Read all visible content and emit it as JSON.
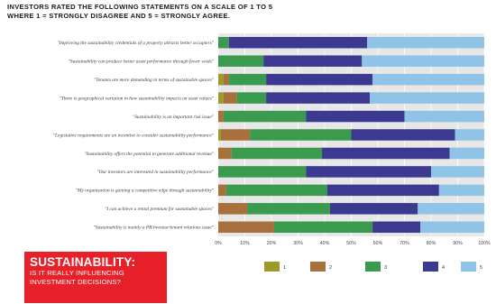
{
  "title": {
    "line1": "INVESTORS RATED THE FOLLOWING STATEMENTS ON A SCALE OF 1 TO 5",
    "line2": "WHERE 1 = STRONGLY DISAGREE AND 5 = STRONGLY AGREE."
  },
  "banner": {
    "heading": "SUSTAINABILITY:",
    "sub_line1": "IS IT REALLY INFLUENCING",
    "sub_line2": "INVESTMENT DECISIONS?"
  },
  "colors": {
    "s1": "#9c9b2a",
    "s2": "#a8703c",
    "s3": "#3a9a4e",
    "s4": "#3c3a90",
    "s5": "#8fc4e6",
    "plot_bg": "#e7e7e7",
    "grid": "#ffffff"
  },
  "chart_data": {
    "type": "bar",
    "orientation": "horizontal",
    "stacked": true,
    "categories": [
      "\"Improving the sustainability credentials of a property attracts better occupiers\"",
      "\"Sustainability can produce better asset performance through fewer voids\"",
      "\"Tenants are more demanding in terms of sustainable spaces\"",
      "\"There is geographical variation in how sustainability impacts on asset values\"",
      "\"Sustainability is an important risk issue\"",
      "\"Legislative requirements are an incentive to consider sustainability performance\"",
      "\"Sustainability offers the potential to generate additional revenue\"",
      "\"Our investors are interested in sustainability performance\"",
      "\"My organisation is gaining a competitive edge through sustainability\"",
      "\"I can achieve a rental premium for sustainable spaces\"",
      "\"Sustainability is mainly a PR/investor/tenant relations issue\""
    ],
    "series": [
      {
        "name": "1",
        "values": [
          0,
          0,
          2,
          2,
          0,
          1,
          0,
          0,
          0,
          0,
          0
        ]
      },
      {
        "name": "2",
        "values": [
          0,
          0,
          2,
          5,
          2,
          11,
          5,
          0,
          3,
          11,
          21
        ]
      },
      {
        "name": "3",
        "values": [
          4,
          17,
          14,
          11,
          31,
          38,
          34,
          33,
          38,
          31,
          37
        ]
      },
      {
        "name": "4",
        "values": [
          52,
          37,
          40,
          39,
          37,
          39,
          48,
          47,
          42,
          33,
          18
        ]
      },
      {
        "name": "5",
        "values": [
          44,
          46,
          42,
          43,
          30,
          11,
          13,
          20,
          17,
          25,
          24
        ]
      }
    ],
    "xlim": [
      0,
      100
    ],
    "xticks": [
      "0%",
      "10%",
      "20%",
      "30%",
      "40%",
      "50%",
      "60%",
      "70%",
      "80%",
      "90%",
      "100%"
    ],
    "grid": true,
    "legend_position": "bottom"
  }
}
